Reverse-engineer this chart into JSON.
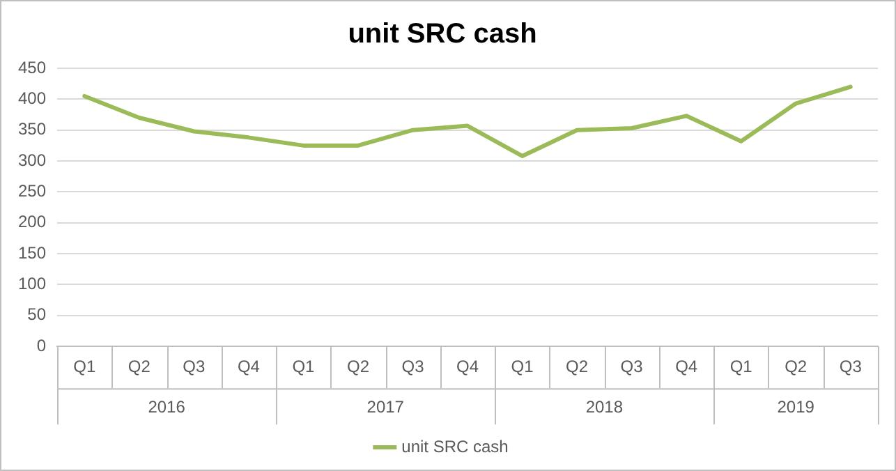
{
  "chart_data": {
    "type": "line",
    "title": "unit SRC cash",
    "categories": [
      "Q1",
      "Q2",
      "Q3",
      "Q4",
      "Q1",
      "Q2",
      "Q3",
      "Q4",
      "Q1",
      "Q2",
      "Q3",
      "Q4",
      "Q1",
      "Q2",
      "Q3"
    ],
    "series": [
      {
        "name": "unit SRC cash",
        "color": "#9bbb59",
        "values": [
          405,
          370,
          348,
          338,
          325,
          325,
          350,
          357,
          308,
          350,
          353,
          373,
          332,
          393,
          420
        ]
      }
    ],
    "annotations": [
      "2016",
      "2017",
      "2018",
      "2019"
    ],
    "ylim": [
      0,
      450
    ],
    "yticks": [
      0,
      50,
      100,
      150,
      200,
      250,
      300,
      350,
      400,
      450
    ],
    "grid": "y",
    "legend": "bottom",
    "marker": "none",
    "line_style": "solid"
  }
}
